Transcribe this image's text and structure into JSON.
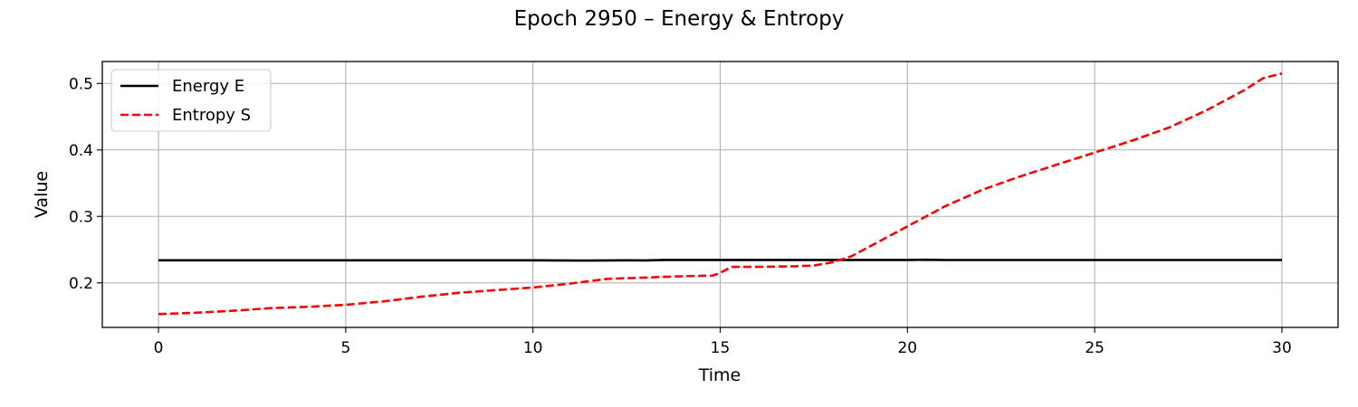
{
  "chart_data": {
    "type": "line",
    "title": "Epoch 2950 – Energy & Entropy",
    "xlabel": "Time",
    "ylabel": "Value",
    "xlim": [
      -1.5,
      31.5
    ],
    "ylim": [
      0.133,
      0.533
    ],
    "xticks": [
      0,
      5,
      10,
      15,
      20,
      25,
      30
    ],
    "xtick_labels": [
      "0",
      "5",
      "10",
      "15",
      "20",
      "25",
      "30"
    ],
    "yticks": [
      0.2,
      0.3,
      0.4,
      0.5
    ],
    "ytick_labels": [
      "0.2",
      "0.3",
      "0.4",
      "0.5"
    ],
    "grid": true,
    "legend_position": "top-left",
    "series": [
      {
        "name": "Energy E",
        "color": "#000000",
        "style": "solid",
        "x": [
          0,
          2,
          4,
          6,
          8,
          10,
          11.5,
          12.5,
          13,
          13.5,
          15,
          17,
          19,
          20,
          20.5,
          21,
          23,
          25,
          27,
          29,
          30
        ],
        "y": [
          0.234,
          0.234,
          0.234,
          0.234,
          0.234,
          0.234,
          0.2335,
          0.234,
          0.2338,
          0.2345,
          0.2345,
          0.2345,
          0.2345,
          0.2345,
          0.2348,
          0.2343,
          0.2343,
          0.2343,
          0.2343,
          0.2343,
          0.2343
        ]
      },
      {
        "name": "Entropy S",
        "color": "#ff0000",
        "style": "dashed",
        "x": [
          0,
          1,
          2,
          3,
          4,
          5,
          6,
          7,
          8,
          9,
          10,
          11,
          12,
          13,
          14,
          14.8,
          15,
          15.3,
          16,
          17,
          17.5,
          18,
          18.5,
          19,
          20,
          21,
          22,
          23,
          24,
          25,
          26,
          27,
          28,
          29,
          29.5,
          30
        ],
        "y": [
          0.153,
          0.155,
          0.158,
          0.162,
          0.164,
          0.167,
          0.172,
          0.179,
          0.185,
          0.189,
          0.193,
          0.199,
          0.206,
          0.208,
          0.21,
          0.211,
          0.215,
          0.224,
          0.224,
          0.225,
          0.226,
          0.231,
          0.24,
          0.255,
          0.285,
          0.315,
          0.34,
          0.36,
          0.378,
          0.396,
          0.414,
          0.434,
          0.46,
          0.49,
          0.508,
          0.515
        ]
      }
    ]
  }
}
